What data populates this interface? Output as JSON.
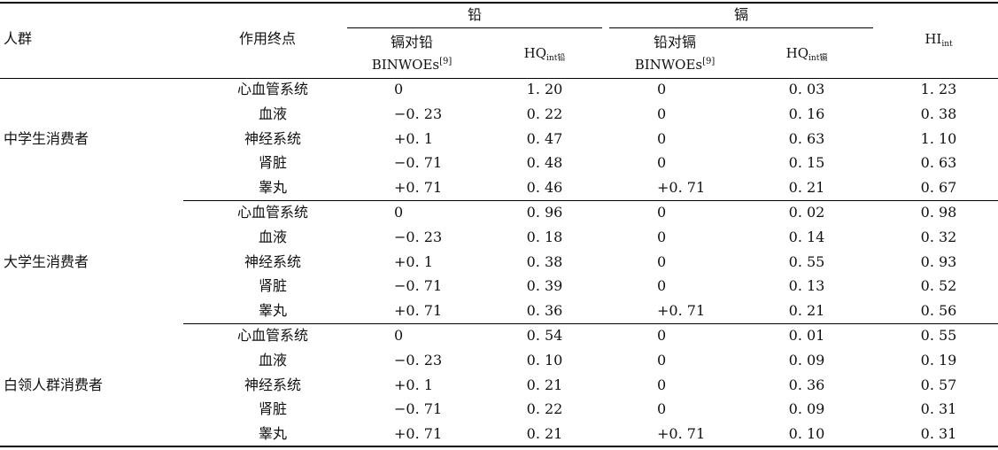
{
  "header": {
    "group": "人群",
    "endpoint": "作用终点",
    "lead": "铅",
    "cadmium": "镉",
    "cd_on_pb_line1": "镉对铅",
    "binwoes": "BINWOEs",
    "ref": "[9]",
    "hq_base": "HQ",
    "hq_pb_sub": "int铅",
    "pb_on_cd_line1": "铅对镉",
    "hq_cd_sub": "int镉",
    "hi_base": "HI",
    "hi_sub": "int"
  },
  "groups": [
    {
      "name": "中学生消费者",
      "rows": [
        {
          "endpoint": "心血管系统",
          "bin_pb": "0",
          "hq_pb": "1. 20",
          "bin_cd": "0",
          "hq_cd": "0. 03",
          "hi": "1. 23"
        },
        {
          "endpoint": "血液",
          "bin_pb": "−0. 23",
          "hq_pb": "0. 22",
          "bin_cd": "0",
          "hq_cd": "0. 16",
          "hi": "0. 38"
        },
        {
          "endpoint": "神经系统",
          "bin_pb": "+0. 1",
          "hq_pb": "0. 47",
          "bin_cd": "0",
          "hq_cd": "0. 63",
          "hi": "1. 10"
        },
        {
          "endpoint": "肾脏",
          "bin_pb": "−0. 71",
          "hq_pb": "0. 48",
          "bin_cd": "0",
          "hq_cd": "0. 15",
          "hi": "0. 63"
        },
        {
          "endpoint": "睾丸",
          "bin_pb": "+0. 71",
          "hq_pb": "0. 46",
          "bin_cd": "+0. 71",
          "hq_cd": "0. 21",
          "hi": "0. 67"
        }
      ]
    },
    {
      "name": "大学生消费者",
      "rows": [
        {
          "endpoint": "心血管系统",
          "bin_pb": "0",
          "hq_pb": "0. 96",
          "bin_cd": "0",
          "hq_cd": "0. 02",
          "hi": "0. 98"
        },
        {
          "endpoint": "血液",
          "bin_pb": "−0. 23",
          "hq_pb": "0. 18",
          "bin_cd": "0",
          "hq_cd": "0. 14",
          "hi": "0. 32"
        },
        {
          "endpoint": "神经系统",
          "bin_pb": "+0. 1",
          "hq_pb": "0. 38",
          "bin_cd": "0",
          "hq_cd": "0. 55",
          "hi": "0. 93"
        },
        {
          "endpoint": "肾脏",
          "bin_pb": "−0. 71",
          "hq_pb": "0. 39",
          "bin_cd": "0",
          "hq_cd": "0. 13",
          "hi": "0. 52"
        },
        {
          "endpoint": "睾丸",
          "bin_pb": "+0. 71",
          "hq_pb": "0. 36",
          "bin_cd": "+0. 71",
          "hq_cd": "0. 21",
          "hi": "0. 56"
        }
      ]
    },
    {
      "name": "白领人群消费者",
      "rows": [
        {
          "endpoint": "心血管系统",
          "bin_pb": "0",
          "hq_pb": "0. 54",
          "bin_cd": "0",
          "hq_cd": "0. 01",
          "hi": "0. 55"
        },
        {
          "endpoint": "血液",
          "bin_pb": "−0. 23",
          "hq_pb": "0. 10",
          "bin_cd": "0",
          "hq_cd": "0. 09",
          "hi": "0. 19"
        },
        {
          "endpoint": "神经系统",
          "bin_pb": "+0. 1",
          "hq_pb": "0. 21",
          "bin_cd": "0",
          "hq_cd": "0. 36",
          "hi": "0. 57"
        },
        {
          "endpoint": "肾脏",
          "bin_pb": "−0. 71",
          "hq_pb": "0. 22",
          "bin_cd": "0",
          "hq_cd": "0. 09",
          "hi": "0. 31"
        },
        {
          "endpoint": "睾丸",
          "bin_pb": "+0. 71",
          "hq_pb": "0. 21",
          "bin_cd": "+0. 71",
          "hq_cd": "0. 10",
          "hi": "0. 31"
        }
      ]
    }
  ]
}
